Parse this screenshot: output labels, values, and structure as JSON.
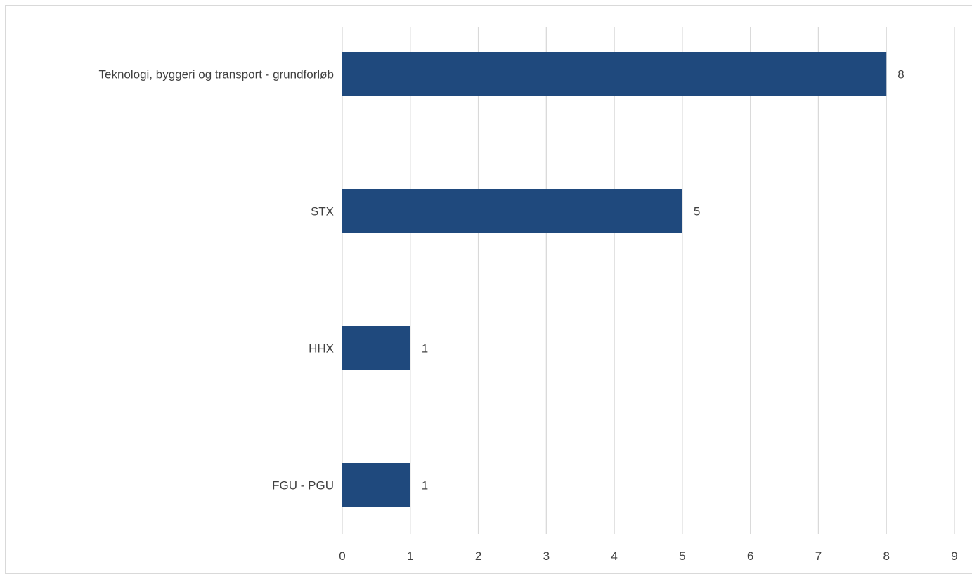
{
  "chart_data": {
    "type": "bar",
    "orientation": "horizontal",
    "categories": [
      "Teknologi, byggeri og transport - grundforløb",
      "STX",
      "HHX",
      "FGU - PGU"
    ],
    "values": [
      8,
      5,
      1,
      1
    ],
    "xlim": [
      0,
      9
    ],
    "x_ticks": [
      "0",
      "1",
      "2",
      "3",
      "4",
      "5",
      "6",
      "7",
      "8",
      "9"
    ],
    "data_labels": [
      "8",
      "5",
      "1",
      "1"
    ],
    "bar_color": "#1f497d",
    "gridlines": "vertical",
    "legend": "none"
  }
}
